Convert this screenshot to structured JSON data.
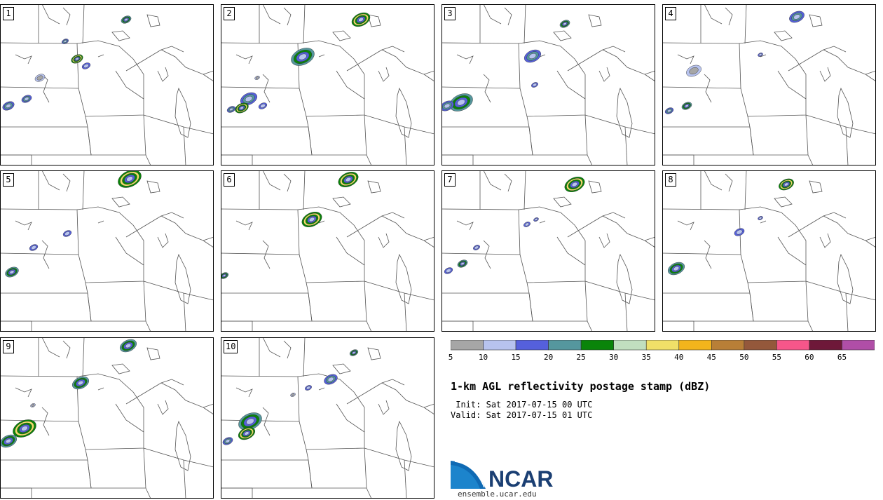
{
  "product": {
    "title": "1-km AGL reflectivity postage stamp (dBZ)",
    "init_label": " Init:",
    "init_value": "Sat 2017-07-15 00 UTC",
    "valid_label": "Valid:",
    "valid_value": "Sat 2017-07-15 01 UTC"
  },
  "colorbar": {
    "ticks": [
      "5",
      "10",
      "15",
      "20",
      "25",
      "30",
      "35",
      "40",
      "45",
      "50",
      "55",
      "60",
      "65"
    ],
    "colors": [
      "#a6a6a6",
      "#b7c3ef",
      "#5560dc",
      "#55979e",
      "#0a840a",
      "#c1dfbf",
      "#f0e068",
      "#f2b41c",
      "#b87f37",
      "#94583b",
      "#f6568a",
      "#6e1839",
      "#b04ea7"
    ]
  },
  "members": [
    {
      "label": "1",
      "storms": [
        {
          "x": 180,
          "y": 22,
          "r": 6,
          "l": 3
        },
        {
          "x": 110,
          "y": 78,
          "r": 7,
          "l": 4
        },
        {
          "x": 93,
          "y": 53,
          "r": 4,
          "l": 2
        },
        {
          "x": 123,
          "y": 88,
          "r": 5,
          "l": 1
        },
        {
          "x": 57,
          "y": 105,
          "r": 6,
          "l": 0
        },
        {
          "x": 38,
          "y": 135,
          "r": 6,
          "l": 2
        },
        {
          "x": 12,
          "y": 145,
          "r": 7,
          "l": 2
        }
      ]
    },
    {
      "label": "2",
      "storms": [
        {
          "x": 200,
          "y": 22,
          "r": 11,
          "l": 4
        },
        {
          "x": 432,
          "y": 75,
          "r": 14,
          "l": 3
        },
        {
          "x": 355,
          "y": 135,
          "r": 10,
          "l": 2
        },
        {
          "x": 345,
          "y": 148,
          "r": 8,
          "l": 4
        },
        {
          "x": 375,
          "y": 145,
          "r": 5,
          "l": 1
        },
        {
          "x": 330,
          "y": 150,
          "r": 5,
          "l": 2
        },
        {
          "x": 52,
          "y": 105,
          "r": 3,
          "l": 0
        }
      ]
    },
    {
      "label": "3",
      "storms": [
        {
          "x": 176,
          "y": 28,
          "r": 6,
          "l": 3
        },
        {
          "x": 760,
          "y": 74,
          "r": 10,
          "l": 2
        },
        {
          "x": 133,
          "y": 115,
          "r": 4,
          "l": 1
        },
        {
          "x": 658,
          "y": 140,
          "r": 14,
          "l": 3
        },
        {
          "x": 638,
          "y": 145,
          "r": 8,
          "l": 2
        }
      ]
    },
    {
      "label": "4",
      "storms": [
        {
          "x": 192,
          "y": 18,
          "r": 9,
          "l": 2
        },
        {
          "x": 45,
          "y": 95,
          "r": 9,
          "l": 0
        },
        {
          "x": 980,
          "y": 145,
          "r": 6,
          "l": 3
        },
        {
          "x": 955,
          "y": 152,
          "r": 5,
          "l": 2
        },
        {
          "x": 140,
          "y": 72,
          "r": 3,
          "l": 1
        }
      ]
    },
    {
      "label": "5",
      "storms": [
        {
          "x": 185,
          "y": 12,
          "r": 14,
          "l": 4
        },
        {
          "x": 96,
          "y": 90,
          "r": 5,
          "l": 1
        },
        {
          "x": 48,
          "y": 110,
          "r": 5,
          "l": 1
        },
        {
          "x": 17,
          "y": 145,
          "r": 8,
          "l": 3
        }
      ]
    },
    {
      "label": "6",
      "storms": [
        {
          "x": 497,
          "y": 13,
          "r": 12,
          "l": 4
        },
        {
          "x": 445,
          "y": 70,
          "r": 12,
          "l": 4
        },
        {
          "x": 320,
          "y": 150,
          "r": 5,
          "l": 3
        }
      ]
    },
    {
      "label": "7",
      "storms": [
        {
          "x": 190,
          "y": 20,
          "r": 12,
          "l": 4
        },
        {
          "x": 752,
          "y": 77,
          "r": 4,
          "l": 1
        },
        {
          "x": 765,
          "y": 70,
          "r": 3,
          "l": 1
        },
        {
          "x": 50,
          "y": 110,
          "r": 4,
          "l": 1
        },
        {
          "x": 660,
          "y": 133,
          "r": 6,
          "l": 3
        },
        {
          "x": 640,
          "y": 143,
          "r": 5,
          "l": 1
        }
      ]
    },
    {
      "label": "8",
      "storms": [
        {
          "x": 177,
          "y": 20,
          "r": 9,
          "l": 4
        },
        {
          "x": 1055,
          "y": 88,
          "r": 6,
          "l": 1
        },
        {
          "x": 1085,
          "y": 68,
          "r": 3,
          "l": 1
        },
        {
          "x": 965,
          "y": 140,
          "r": 10,
          "l": 3
        }
      ]
    },
    {
      "label": "9",
      "storms": [
        {
          "x": 183,
          "y": 12,
          "r": 10,
          "l": 3
        },
        {
          "x": 115,
          "y": 65,
          "r": 10,
          "l": 3
        },
        {
          "x": 47,
          "y": 97,
          "r": 3,
          "l": 0
        },
        {
          "x": 35,
          "y": 130,
          "r": 14,
          "l": 4
        },
        {
          "x": 12,
          "y": 148,
          "r": 10,
          "l": 3
        }
      ]
    },
    {
      "label": "10",
      "storms": [
        {
          "x": 190,
          "y": 22,
          "r": 5,
          "l": 3
        },
        {
          "x": 472,
          "y": 60,
          "r": 8,
          "l": 2
        },
        {
          "x": 440,
          "y": 72,
          "r": 4,
          "l": 1
        },
        {
          "x": 357,
          "y": 120,
          "r": 14,
          "l": 3
        },
        {
          "x": 352,
          "y": 137,
          "r": 10,
          "l": 4
        },
        {
          "x": 325,
          "y": 148,
          "r": 6,
          "l": 2
        },
        {
          "x": 418,
          "y": 82,
          "r": 3,
          "l": 0
        }
      ]
    }
  ],
  "logo": {
    "text": "NCAR",
    "site": "ensemble.ucar.edu"
  }
}
